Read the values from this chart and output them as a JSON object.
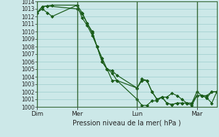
{
  "background_color": "#cce8e8",
  "grid_color": "#99cccc",
  "line_color": "#1a5c1a",
  "marker_color": "#1a5c1a",
  "ylim": [
    1000,
    1014
  ],
  "yticks": [
    1000,
    1001,
    1002,
    1003,
    1004,
    1005,
    1006,
    1007,
    1008,
    1009,
    1010,
    1011,
    1012,
    1013,
    1014
  ],
  "xlabel": "Pression niveau de la mer( hPa )",
  "day_labels": [
    "Dim",
    "Mer",
    "Lun",
    "Mar"
  ],
  "day_positions": [
    0.0,
    0.222,
    0.556,
    0.889
  ],
  "xlim": [
    0.0,
    1.0
  ],
  "series1_x": [
    0.0,
    0.028,
    0.056,
    0.222,
    0.25,
    0.278,
    0.306,
    0.333,
    0.361,
    0.389,
    0.417,
    0.444,
    0.556,
    0.583,
    0.611,
    0.639,
    0.667,
    0.694,
    0.722,
    0.75,
    0.778,
    0.806,
    0.833,
    0.861,
    0.889,
    0.917,
    0.944,
    0.972,
    1.0
  ],
  "series1_y": [
    1012.5,
    1013.3,
    1013.4,
    1013.0,
    1012.4,
    1011.1,
    1009.8,
    1008.0,
    1006.0,
    1005.0,
    1003.5,
    1003.5,
    1001.0,
    1000.2,
    1000.2,
    1000.8,
    1000.8,
    1001.3,
    1001.3,
    1001.8,
    1001.5,
    1001.0,
    1000.5,
    1000.2,
    1001.5,
    1001.5,
    1001.5,
    1002.0,
    1002.0
  ],
  "series2_x": [
    0.0,
    0.028,
    0.056,
    0.083,
    0.222,
    0.25,
    0.278,
    0.306,
    0.333,
    0.361,
    0.389,
    0.417,
    0.444,
    0.556,
    0.583,
    0.611,
    0.639,
    0.667,
    0.694,
    0.722,
    0.75,
    0.778,
    0.806,
    0.833,
    0.861,
    0.889,
    0.917,
    0.944,
    0.972,
    1.0
  ],
  "series2_y": [
    1012.5,
    1013.3,
    1013.4,
    1013.5,
    1013.5,
    1012.5,
    1011.1,
    1010.0,
    1008.0,
    1006.5,
    1005.0,
    1004.5,
    1003.5,
    1002.5,
    1003.5,
    1003.5,
    1002.0,
    1001.0,
    1001.3,
    1000.5,
    1000.3,
    1000.5,
    1000.5,
    1000.5,
    1000.5,
    1001.5,
    1001.5,
    1001.2,
    1002.0,
    1002.0
  ],
  "series3_x": [
    0.0,
    0.028,
    0.056,
    0.083,
    0.222,
    0.25,
    0.278,
    0.306,
    0.333,
    0.361,
    0.389,
    0.417,
    0.444,
    0.556,
    0.583,
    0.611,
    0.639,
    0.667,
    0.694,
    0.722,
    0.75,
    0.778,
    0.806,
    0.833,
    0.861,
    0.889,
    0.917,
    0.944,
    0.972,
    1.0
  ],
  "series3_y": [
    1012.5,
    1013.0,
    1012.5,
    1012.0,
    1013.5,
    1011.8,
    1010.8,
    1009.5,
    1008.0,
    1006.0,
    1005.0,
    1004.8,
    1004.2,
    1002.5,
    1003.7,
    1003.5,
    1002.0,
    1001.0,
    1001.3,
    1000.5,
    1000.3,
    1000.5,
    1000.5,
    1000.5,
    1000.5,
    1002.0,
    1001.5,
    1001.2,
    1000.5,
    1002.0
  ]
}
